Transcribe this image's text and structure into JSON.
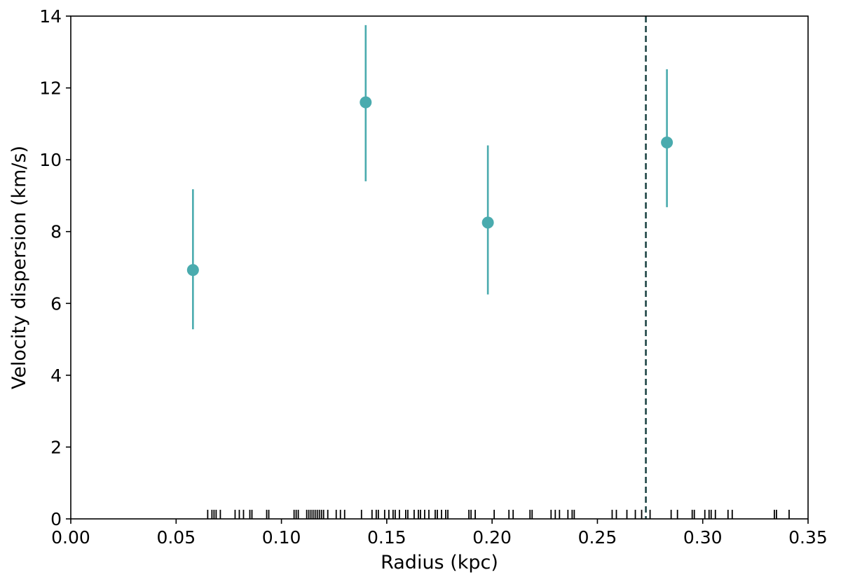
{
  "chart_data": {
    "type": "scatter",
    "title": "",
    "xlabel": "Radius (kpc)",
    "ylabel": "Velocity dispersion (km/s)",
    "xlim": [
      0.0,
      0.35
    ],
    "ylim": [
      0,
      14
    ],
    "xticks": [
      "0.00",
      "0.05",
      "0.10",
      "0.15",
      "0.20",
      "0.25",
      "0.30",
      "0.35"
    ],
    "yticks": [
      "0",
      "2",
      "4",
      "6",
      "8",
      "10",
      "12",
      "14"
    ],
    "grid": false,
    "legend": "none",
    "series": [
      {
        "color": "#4aabae",
        "points": [
          {
            "x": 0.058,
            "y": 6.93,
            "err_low": 5.28,
            "err_high": 9.18
          },
          {
            "x": 0.14,
            "y": 11.6,
            "err_low": 9.4,
            "err_high": 13.75
          },
          {
            "x": 0.198,
            "y": 8.25,
            "err_low": 6.25,
            "err_high": 10.4
          },
          {
            "x": 0.283,
            "y": 10.48,
            "err_low": 8.68,
            "err_high": 12.52
          }
        ]
      }
    ],
    "reference_line": {
      "x": 0.273,
      "style": "dashed",
      "color": "#1e4545"
    },
    "rug": {
      "color": "#000000",
      "x": [
        0.065,
        0.067,
        0.068,
        0.069,
        0.071,
        0.078,
        0.08,
        0.082,
        0.085,
        0.086,
        0.093,
        0.094,
        0.106,
        0.107,
        0.108,
        0.112,
        0.113,
        0.114,
        0.115,
        0.116,
        0.117,
        0.118,
        0.119,
        0.12,
        0.122,
        0.126,
        0.128,
        0.13,
        0.138,
        0.143,
        0.145,
        0.146,
        0.149,
        0.151,
        0.153,
        0.154,
        0.156,
        0.159,
        0.16,
        0.163,
        0.165,
        0.166,
        0.168,
        0.17,
        0.173,
        0.174,
        0.176,
        0.178,
        0.179,
        0.189,
        0.19,
        0.192,
        0.201,
        0.208,
        0.21,
        0.218,
        0.219,
        0.228,
        0.23,
        0.232,
        0.236,
        0.238,
        0.239,
        0.257,
        0.259,
        0.264,
        0.268,
        0.271,
        0.275,
        0.285,
        0.288,
        0.295,
        0.296,
        0.301,
        0.303,
        0.304,
        0.306,
        0.312,
        0.314,
        0.334,
        0.335,
        0.341
      ]
    }
  }
}
